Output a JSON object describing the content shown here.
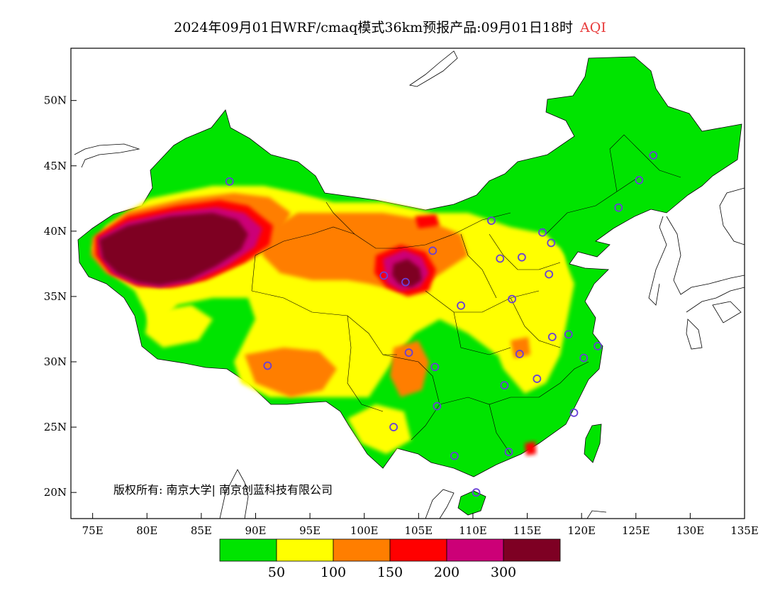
{
  "title": {
    "main": "2024年09月01日WRF/cmaq模式36km预报产品:09月01日18时",
    "variable": "AQI",
    "variable_color": "#e83a3a"
  },
  "map": {
    "lon_range": [
      73,
      135
    ],
    "lat_range": [
      18,
      54
    ],
    "lat_ticks": [
      {
        "value": 50,
        "label": "50N"
      },
      {
        "value": 45,
        "label": "45N"
      },
      {
        "value": 40,
        "label": "40N"
      },
      {
        "value": 35,
        "label": "35N"
      },
      {
        "value": 30,
        "label": "30N"
      },
      {
        "value": 25,
        "label": "25N"
      },
      {
        "value": 20,
        "label": "20N"
      }
    ],
    "lon_ticks": [
      {
        "value": 75,
        "label": "75E"
      },
      {
        "value": 80,
        "label": "80E"
      },
      {
        "value": 85,
        "label": "85E"
      },
      {
        "value": 90,
        "label": "90E"
      },
      {
        "value": 95,
        "label": "95E"
      },
      {
        "value": 100,
        "label": "100E"
      },
      {
        "value": 105,
        "label": "105E"
      },
      {
        "value": 110,
        "label": "110E"
      },
      {
        "value": 115,
        "label": "115E"
      },
      {
        "value": 120,
        "label": "120E"
      },
      {
        "value": 125,
        "label": "125E"
      },
      {
        "value": 130,
        "label": "130E"
      },
      {
        "value": 135,
        "label": "135E"
      }
    ],
    "copyright": "版权所有: 南京大学| 南京创蓝科技有限公司",
    "city_marker_color": "#6a3fd6",
    "cities": [
      {
        "lon": 87.6,
        "lat": 43.8
      },
      {
        "lon": 91.1,
        "lat": 29.7
      },
      {
        "lon": 101.8,
        "lat": 36.6
      },
      {
        "lon": 103.8,
        "lat": 36.1
      },
      {
        "lon": 106.3,
        "lat": 38.5
      },
      {
        "lon": 111.7,
        "lat": 40.8
      },
      {
        "lon": 112.5,
        "lat": 37.9
      },
      {
        "lon": 114.5,
        "lat": 38.0
      },
      {
        "lon": 116.4,
        "lat": 39.9
      },
      {
        "lon": 117.2,
        "lat": 39.1
      },
      {
        "lon": 117.0,
        "lat": 36.7
      },
      {
        "lon": 113.6,
        "lat": 34.8
      },
      {
        "lon": 108.9,
        "lat": 34.3
      },
      {
        "lon": 104.1,
        "lat": 30.7
      },
      {
        "lon": 106.5,
        "lat": 29.6
      },
      {
        "lon": 106.7,
        "lat": 26.6
      },
      {
        "lon": 102.7,
        "lat": 25.0
      },
      {
        "lon": 108.3,
        "lat": 22.8
      },
      {
        "lon": 110.3,
        "lat": 20.0
      },
      {
        "lon": 113.3,
        "lat": 23.1
      },
      {
        "lon": 112.9,
        "lat": 28.2
      },
      {
        "lon": 114.3,
        "lat": 30.6
      },
      {
        "lon": 115.9,
        "lat": 28.7
      },
      {
        "lon": 117.3,
        "lat": 31.9
      },
      {
        "lon": 118.8,
        "lat": 32.1
      },
      {
        "lon": 120.2,
        "lat": 30.3
      },
      {
        "lon": 121.5,
        "lat": 31.2
      },
      {
        "lon": 119.3,
        "lat": 26.1
      },
      {
        "lon": 123.4,
        "lat": 41.8
      },
      {
        "lon": 125.3,
        "lat": 43.9
      },
      {
        "lon": 126.6,
        "lat": 45.8
      }
    ]
  },
  "colorbar": {
    "colors": [
      "#00e400",
      "#ffff00",
      "#ff7e00",
      "#ff0000",
      "#cc0077",
      "#7e0023"
    ],
    "labels": [
      "50",
      "100",
      "150",
      "200",
      "300"
    ]
  }
}
